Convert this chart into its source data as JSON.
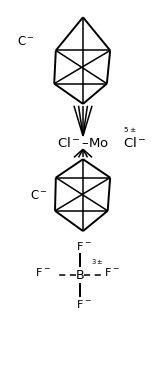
{
  "bg_color": "#ffffff",
  "line_color": "#000000",
  "text_color": "#000000",
  "figsize": [
    1.66,
    3.7
  ],
  "dpi": 100,
  "lw": 1.4,
  "lw_thin": 1.1
}
